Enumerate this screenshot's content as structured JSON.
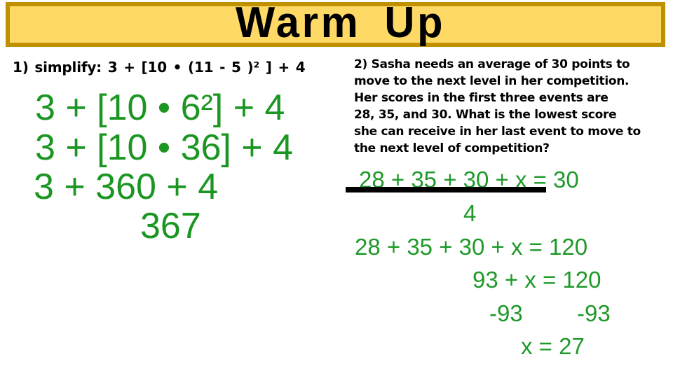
{
  "slide": {
    "title": "Warm Up"
  },
  "colors": {
    "banner_fill": "#FFD966",
    "banner_border": "#BF9000",
    "statement_text": "#000000",
    "work_green_left": "#1B9622",
    "work_green_right": "#1F9929",
    "fraction_bar": "#000000"
  },
  "problem1": {
    "statement": "1) simplify: 3 + [10 • (11 - 5 )² ] + 4",
    "steps": [
      "3 + [10 • 6²] + 4",
      "3 + [10 • 36] + 4",
      "3 + 360 + 4",
      "367"
    ]
  },
  "problem2": {
    "statement_lines": [
      "2) Sasha needs an average of 30 points to",
      "move to the next level in her competition.",
      "Her scores in the first three events are",
      "28, 35, and 30. What is the lowest score",
      "she can receive in her last event to move to",
      "the next level of competition?"
    ],
    "work": {
      "numerator_equation": "28 + 35 + 30 + x = 30",
      "denominator": "4",
      "line2": "28 + 35 + 30 + x = 120",
      "line3": "93 + x = 120",
      "line4_left": "-93",
      "line4_right": "-93",
      "line5": "x = 27"
    }
  }
}
